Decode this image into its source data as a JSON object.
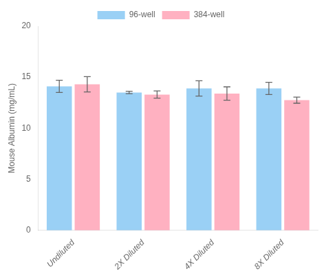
{
  "chart_data": {
    "type": "bar",
    "categories": [
      "Undiluted",
      "2X Diluted",
      "4X Diluted",
      "8X Diluted"
    ],
    "series": [
      {
        "name": "96-well",
        "values": [
          14.1,
          13.5,
          13.9,
          13.9
        ],
        "errors": [
          0.6,
          0.12,
          0.75,
          0.6
        ]
      },
      {
        "name": "384-well",
        "values": [
          14.3,
          13.3,
          13.4,
          12.75
        ],
        "errors": [
          0.75,
          0.35,
          0.65,
          0.3
        ]
      }
    ],
    "ylabel": "Mouse Albumin (mg/mL)",
    "ylim": [
      0,
      20
    ],
    "yticks": [
      0,
      5,
      10,
      15,
      20
    ],
    "grid": false,
    "legend": "top"
  }
}
